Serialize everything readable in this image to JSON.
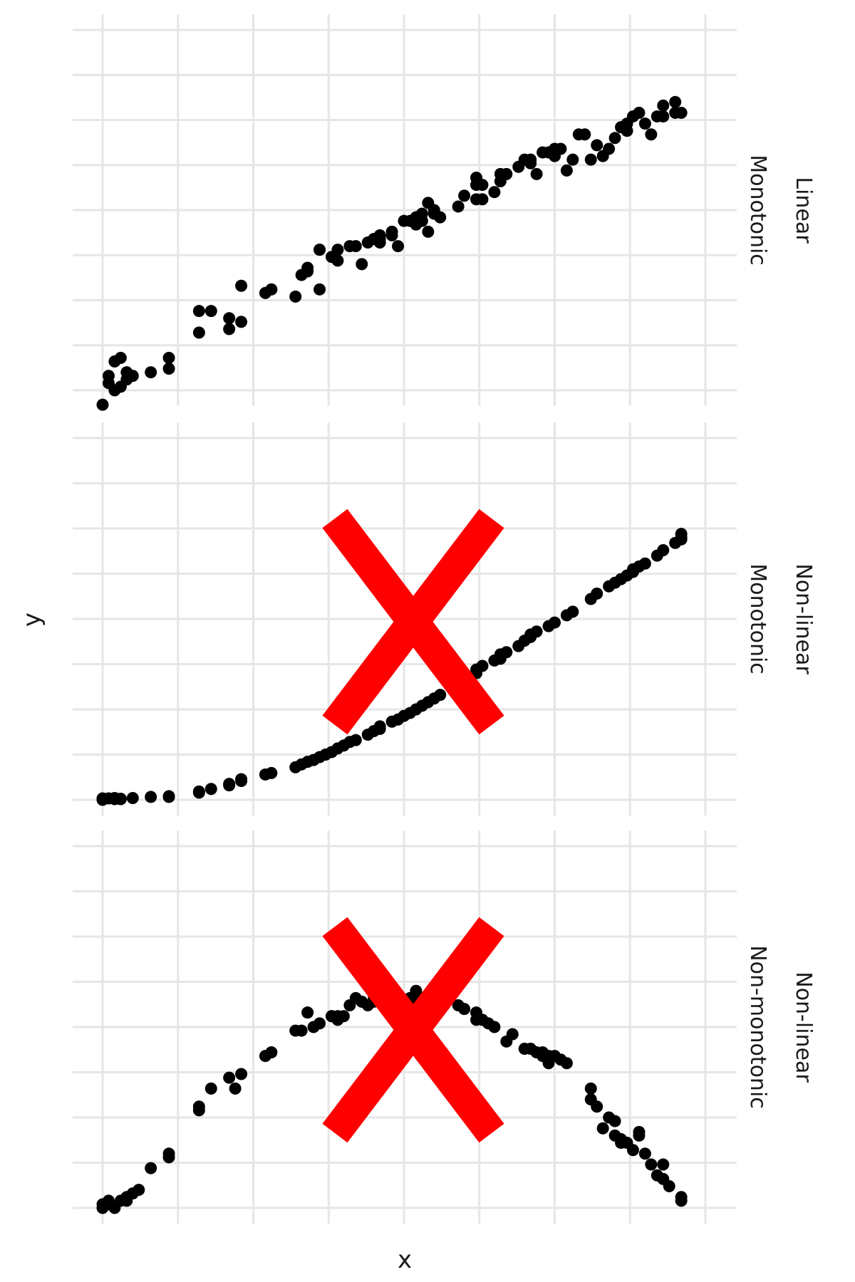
{
  "chart_data": {
    "type": "scatter",
    "xlabel": "x",
    "ylabel": "y",
    "grid": true,
    "legend": "none",
    "orientation": "rotated 90 degrees clockwise; facets stacked vertically on the page",
    "x_range": [
      0,
      100
    ],
    "panels": [
      {
        "strip_labels": [
          "Linear",
          "Monotonic"
        ],
        "crossed_out": false,
        "y_range": [
          0,
          100
        ],
        "points": [
          [
            0,
            -4
          ],
          [
            1,
            2
          ],
          [
            2,
            0
          ],
          [
            1,
            4
          ],
          [
            2,
            8
          ],
          [
            3,
            9
          ],
          [
            3,
            1
          ],
          [
            4,
            3
          ],
          [
            4,
            5
          ],
          [
            5,
            4
          ],
          [
            8,
            5
          ],
          [
            11,
            6
          ],
          [
            11,
            9
          ],
          [
            16,
            16
          ],
          [
            16,
            22
          ],
          [
            18,
            22
          ],
          [
            21,
            20
          ],
          [
            21,
            17
          ],
          [
            23,
            19
          ],
          [
            23,
            29
          ],
          [
            27,
            27
          ],
          [
            28,
            28
          ],
          [
            32,
            26
          ],
          [
            33,
            32
          ],
          [
            34,
            33
          ],
          [
            34,
            34
          ],
          [
            36,
            39
          ],
          [
            36,
            28
          ],
          [
            36,
            39
          ],
          [
            38,
            37
          ],
          [
            39,
            36
          ],
          [
            39,
            39
          ],
          [
            41,
            40
          ],
          [
            42,
            40
          ],
          [
            43,
            35
          ],
          [
            44,
            41
          ],
          [
            45,
            42
          ],
          [
            46,
            41
          ],
          [
            46,
            43
          ],
          [
            46,
            42
          ],
          [
            48,
            43
          ],
          [
            48,
            44
          ],
          [
            49,
            40
          ],
          [
            50,
            47
          ],
          [
            51,
            47
          ],
          [
            52,
            46
          ],
          [
            52,
            48
          ],
          [
            53,
            47
          ],
          [
            53,
            49
          ],
          [
            54,
            52
          ],
          [
            54,
            44
          ],
          [
            55,
            49
          ],
          [
            55,
            50
          ],
          [
            56,
            48
          ],
          [
            59,
            51
          ],
          [
            60,
            54
          ],
          [
            62,
            53
          ],
          [
            62,
            59
          ],
          [
            63,
            53
          ],
          [
            62,
            57
          ],
          [
            63,
            57
          ],
          [
            65,
            55
          ],
          [
            66,
            58
          ],
          [
            66,
            60
          ],
          [
            67,
            60
          ],
          [
            69,
            62
          ],
          [
            70,
            64
          ],
          [
            71,
            63
          ],
          [
            71,
            64
          ],
          [
            72,
            60
          ],
          [
            73,
            66
          ],
          [
            74,
            66
          ],
          [
            75,
            65
          ],
          [
            75,
            67
          ],
          [
            76,
            67
          ],
          [
            77,
            61
          ],
          [
            78,
            64
          ],
          [
            79,
            71
          ],
          [
            80,
            71
          ],
          [
            81,
            64
          ],
          [
            82,
            68
          ],
          [
            83,
            65
          ],
          [
            84,
            67
          ],
          [
            85,
            70
          ],
          [
            86,
            73
          ],
          [
            87,
            74
          ],
          [
            87,
            72
          ],
          [
            88,
            76
          ],
          [
            89,
            77
          ],
          [
            90,
            74
          ],
          [
            91,
            71
          ],
          [
            92,
            76
          ],
          [
            93,
            76
          ],
          [
            93,
            79
          ],
          [
            95,
            77
          ],
          [
            95,
            80
          ],
          [
            96,
            77
          ]
        ]
      },
      {
        "strip_labels": [
          "Non-linear",
          "Monotonic"
        ],
        "crossed_out": true,
        "y_range": [
          0,
          100
        ],
        "points": [
          [
            0,
            0.4
          ],
          [
            0,
            0
          ],
          [
            1,
            0.4
          ],
          [
            2,
            0.5
          ],
          [
            2,
            0.2
          ],
          [
            3,
            0.3
          ],
          [
            3,
            0.2
          ],
          [
            5,
            0.5
          ],
          [
            8,
            0.8
          ],
          [
            11,
            1
          ],
          [
            11,
            0.8
          ],
          [
            16,
            2
          ],
          [
            16,
            2.3
          ],
          [
            18,
            3
          ],
          [
            21,
            4
          ],
          [
            21,
            4.4
          ],
          [
            23,
            5.2
          ],
          [
            23,
            5.7
          ],
          [
            27,
            7
          ],
          [
            28,
            7.4
          ],
          [
            32,
            9
          ],
          [
            33,
            9.8
          ],
          [
            34,
            10.5
          ],
          [
            35,
            11
          ],
          [
            36,
            11.8
          ],
          [
            37,
            12.5
          ],
          [
            38,
            13.2
          ],
          [
            39,
            14.2
          ],
          [
            40,
            15
          ],
          [
            41,
            16
          ],
          [
            42,
            16.5
          ],
          [
            44,
            18
          ],
          [
            45,
            19
          ],
          [
            46,
            19.6
          ],
          [
            46,
            20.3
          ],
          [
            48,
            21.6
          ],
          [
            49,
            22.2
          ],
          [
            50,
            23.2
          ],
          [
            51,
            24
          ],
          [
            52,
            25
          ],
          [
            53,
            26
          ],
          [
            54,
            27
          ],
          [
            55,
            28
          ],
          [
            56,
            29
          ],
          [
            58,
            31
          ],
          [
            59,
            32
          ],
          [
            60,
            33.5
          ],
          [
            62,
            35
          ],
          [
            62,
            36
          ],
          [
            63,
            37
          ],
          [
            65,
            38.5
          ],
          [
            66,
            39
          ],
          [
            66,
            40.2
          ],
          [
            67,
            40.8
          ],
          [
            69,
            42.5
          ],
          [
            70,
            44
          ],
          [
            71,
            45
          ],
          [
            71,
            45.7
          ],
          [
            72,
            46.5
          ],
          [
            74,
            48
          ],
          [
            75,
            49
          ],
          [
            77,
            51
          ],
          [
            78,
            52
          ],
          [
            81,
            55.5
          ],
          [
            82,
            57
          ],
          [
            84,
            59
          ],
          [
            85,
            60
          ],
          [
            86,
            61
          ],
          [
            87,
            62
          ],
          [
            88,
            63
          ],
          [
            88,
            63.7
          ],
          [
            89,
            64.5
          ],
          [
            90,
            65.3
          ],
          [
            92,
            67.5
          ],
          [
            93,
            69
          ],
          [
            95,
            71
          ],
          [
            96,
            72
          ],
          [
            96,
            72.5
          ],
          [
            96,
            73.5
          ]
        ]
      },
      {
        "strip_labels": [
          "Non-linear",
          "Non-monotonic"
        ],
        "crossed_out": true,
        "y_range": [
          0,
          100
        ],
        "points": [
          [
            0,
            0
          ],
          [
            0,
            1
          ],
          [
            1,
            2
          ],
          [
            1,
            1
          ],
          [
            2,
            0
          ],
          [
            3,
            2
          ],
          [
            4,
            3
          ],
          [
            4,
            2
          ],
          [
            5,
            4
          ],
          [
            6,
            5
          ],
          [
            8,
            11
          ],
          [
            11,
            14
          ],
          [
            11,
            15
          ],
          [
            16,
            28
          ],
          [
            16,
            27
          ],
          [
            18,
            33
          ],
          [
            21,
            36
          ],
          [
            22,
            33
          ],
          [
            23,
            37
          ],
          [
            27,
            42
          ],
          [
            28,
            43
          ],
          [
            32,
            49
          ],
          [
            33,
            49
          ],
          [
            34,
            54
          ],
          [
            35,
            50
          ],
          [
            36,
            51
          ],
          [
            38,
            53
          ],
          [
            38,
            53
          ],
          [
            39,
            52
          ],
          [
            39,
            53
          ],
          [
            40,
            53
          ],
          [
            41,
            56
          ],
          [
            42,
            58
          ],
          [
            43,
            57
          ],
          [
            44,
            56
          ],
          [
            45,
            58
          ],
          [
            45,
            57
          ],
          [
            46,
            60
          ],
          [
            46,
            58
          ],
          [
            48,
            57
          ],
          [
            49,
            55
          ],
          [
            50,
            56
          ],
          [
            51,
            57
          ],
          [
            51,
            58
          ],
          [
            52,
            58
          ],
          [
            52,
            60
          ],
          [
            53,
            56
          ],
          [
            53,
            58
          ],
          [
            54,
            57
          ],
          [
            55,
            59
          ],
          [
            57,
            57
          ],
          [
            59,
            56
          ],
          [
            60,
            55
          ],
          [
            62,
            54
          ],
          [
            62,
            52
          ],
          [
            63,
            52
          ],
          [
            64,
            51
          ],
          [
            65,
            50
          ],
          [
            67,
            46
          ],
          [
            68,
            48
          ],
          [
            70,
            44
          ],
          [
            71,
            44
          ],
          [
            72,
            43
          ],
          [
            73,
            42
          ],
          [
            73,
            43
          ],
          [
            74,
            42
          ],
          [
            74,
            40
          ],
          [
            75,
            42
          ],
          [
            76,
            41
          ],
          [
            77,
            40
          ],
          [
            81,
            30
          ],
          [
            81,
            33
          ],
          [
            82,
            28
          ],
          [
            83,
            22
          ],
          [
            84,
            25
          ],
          [
            85,
            24
          ],
          [
            85,
            20
          ],
          [
            86,
            18
          ],
          [
            86,
            19
          ],
          [
            87,
            18
          ],
          [
            88,
            16
          ],
          [
            89,
            21
          ],
          [
            89,
            20
          ],
          [
            90,
            15
          ],
          [
            91,
            12
          ],
          [
            92,
            9
          ],
          [
            93,
            8
          ],
          [
            93,
            12
          ],
          [
            94,
            6
          ],
          [
            96,
            2
          ],
          [
            96,
            3
          ]
        ]
      }
    ]
  }
}
